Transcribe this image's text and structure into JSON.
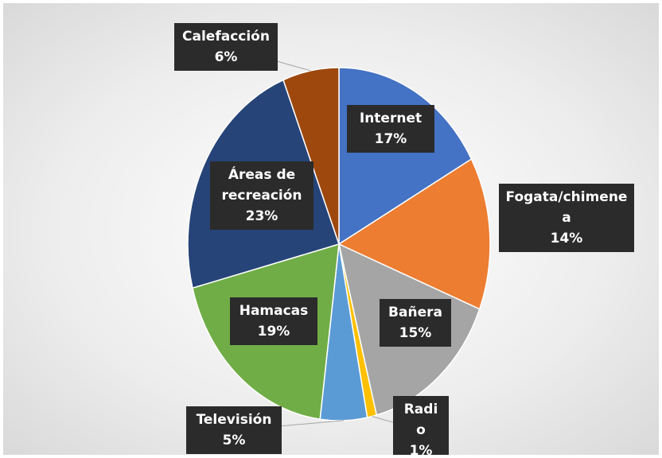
{
  "chart_data": {
    "type": "pie",
    "categories": [
      "Internet",
      "Fogata/chimenea",
      "Bañera",
      "Radio",
      "Televisión",
      "Hamacas",
      "Áreas de recreación",
      "Calefacción"
    ],
    "values": [
      17,
      14,
      15,
      1,
      5,
      19,
      23,
      6
    ],
    "value_labels": [
      "17%",
      "14%",
      "15%",
      "1%",
      "5%",
      "19%",
      "23%",
      "6%"
    ],
    "colors": [
      "#4472c4",
      "#ed7d31",
      "#a5a5a5",
      "#ffc000",
      "#5b9bd5",
      "#70ad47",
      "#264478",
      "#9e480e"
    ]
  }
}
